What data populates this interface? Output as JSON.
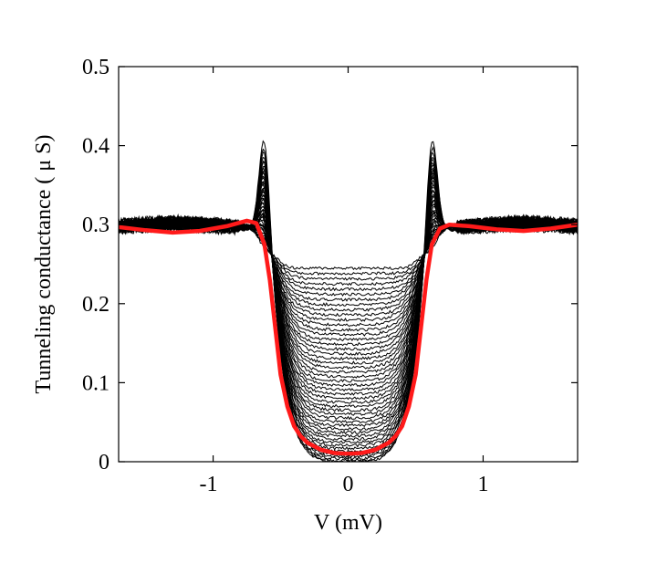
{
  "chart_data": {
    "type": "line",
    "title": "",
    "xlabel": "V (mV)",
    "ylabel": "Tunneling conductance ( μ S)",
    "xlim": [
      -1.7,
      1.7
    ],
    "ylim": [
      0,
      0.5
    ],
    "x_ticks": [
      -1,
      0,
      1
    ],
    "x_tick_labels": [
      "-1",
      "0",
      "1"
    ],
    "y_ticks": [
      0,
      0.1,
      0.2,
      0.3,
      0.4,
      0.5
    ],
    "y_tick_labels": [
      "0",
      "0.1",
      "0.2",
      "0.3",
      "0.4",
      "0.5"
    ],
    "grid": false,
    "legend": "none",
    "series_colors": {
      "family": "#000000",
      "highlight": "#ff1a1a"
    },
    "family_series": {
      "count": 48,
      "peak_height": {
        "min": 0.3,
        "max": 0.425
      },
      "zero_bias_value": {
        "min": 0.0,
        "max": 0.245
      },
      "gap_edge_mV": 0.62,
      "background_level": 0.3
    },
    "highlight_series": {
      "x": [
        -1.7,
        -1.5,
        -1.3,
        -1.1,
        -0.9,
        -0.75,
        -0.68,
        -0.62,
        -0.58,
        -0.54,
        -0.5,
        -0.45,
        -0.4,
        -0.35,
        -0.3,
        -0.2,
        -0.1,
        0,
        0.1,
        0.2,
        0.3,
        0.35,
        0.4,
        0.45,
        0.5,
        0.54,
        0.58,
        0.62,
        0.68,
        0.75,
        0.9,
        1.1,
        1.3,
        1.5,
        1.7
      ],
      "y": [
        0.297,
        0.293,
        0.29,
        0.292,
        0.298,
        0.305,
        0.302,
        0.275,
        0.23,
        0.17,
        0.11,
        0.07,
        0.045,
        0.032,
        0.024,
        0.015,
        0.011,
        0.01,
        0.011,
        0.015,
        0.024,
        0.032,
        0.045,
        0.07,
        0.11,
        0.17,
        0.23,
        0.275,
        0.295,
        0.3,
        0.298,
        0.294,
        0.292,
        0.295,
        0.3
      ]
    }
  }
}
